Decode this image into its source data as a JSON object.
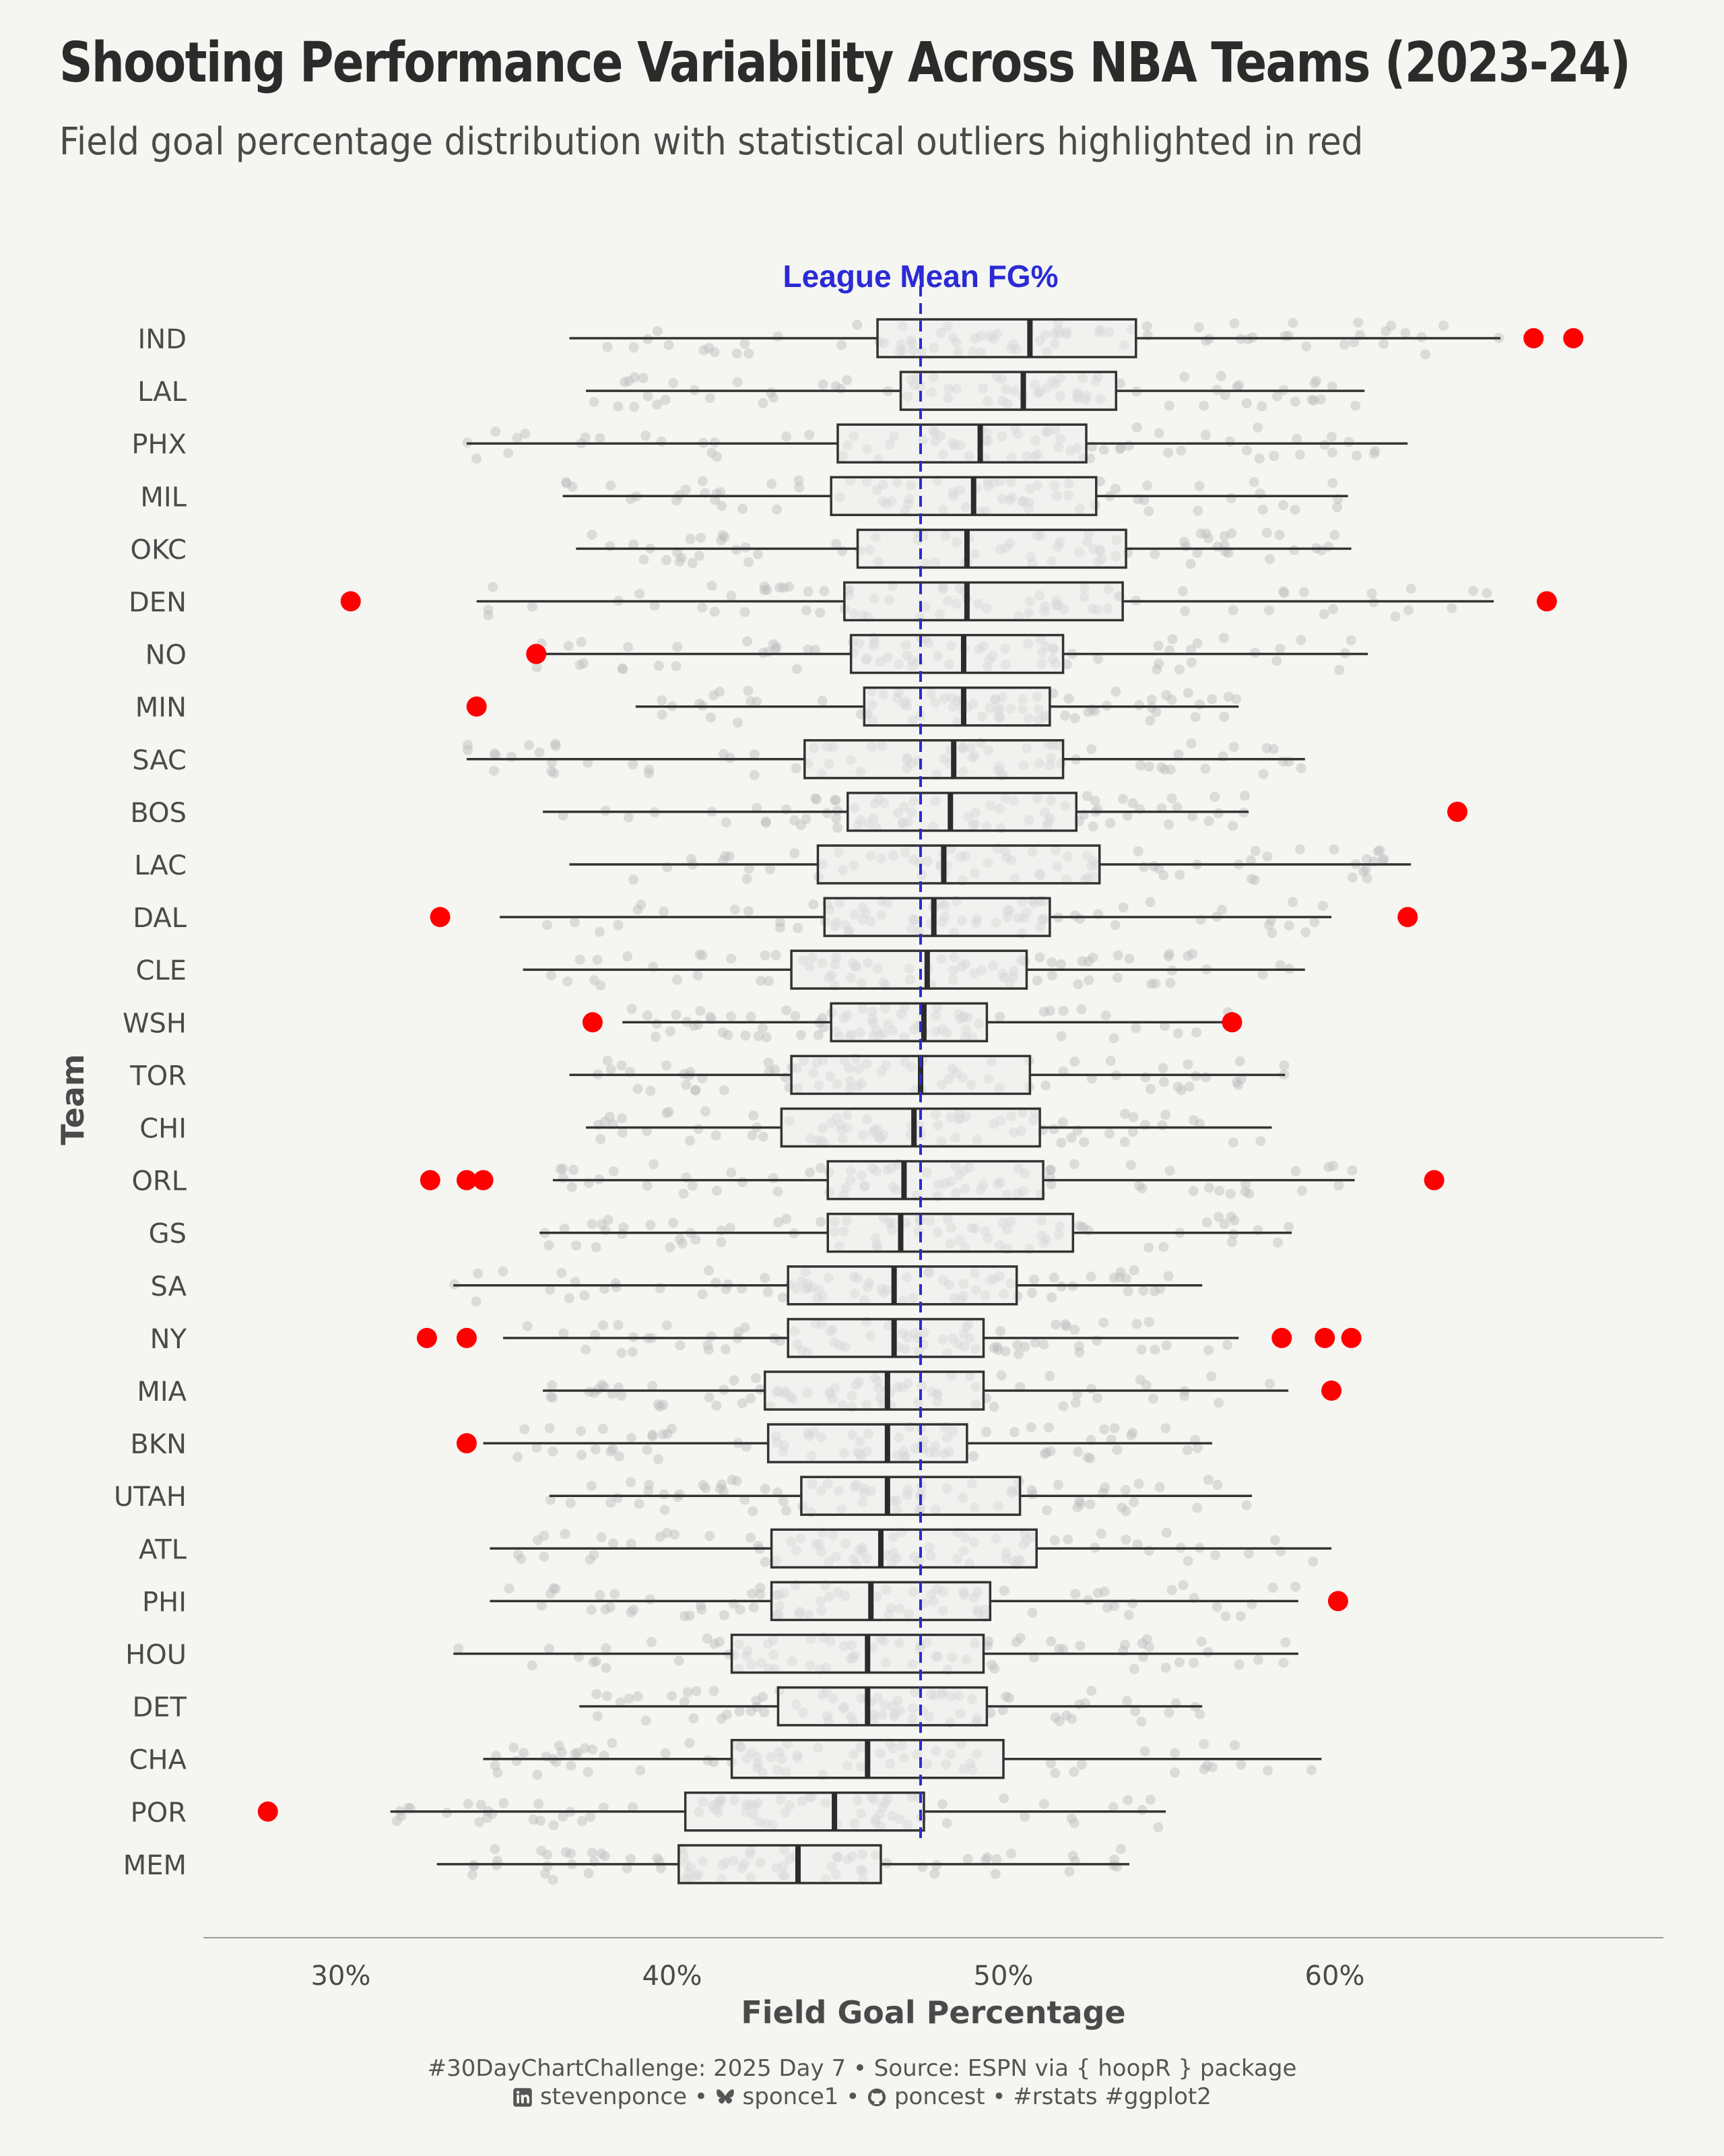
{
  "title": "Shooting Performance Variability Across NBA Teams (2023-24)",
  "subtitle": "Field goal percentage distribution with statistical outliers highlighted in red",
  "caption": {
    "line1": "#30DayChartChallenge: 2025 Day 7 • Source: ESPN via { hoopR } package",
    "linkedin_handle": "stevenponce",
    "bluesky_handle": "sponce1",
    "github_handle": "poncest",
    "tags": "#rstats #ggplot2",
    "separator": "•"
  },
  "icons": {
    "linkedin": "linkedin-icon",
    "bluesky": "bluesky-icon",
    "github": "github-icon"
  },
  "colors": {
    "background": "#f5f5f2",
    "outlier": "#ff0000",
    "mean_line": "#2a2ad6",
    "box_fill": "#ececec",
    "box_stroke": "#333333",
    "jitter": "#bdbdbd"
  },
  "chart_data": {
    "type": "boxplot",
    "orientation": "horizontal",
    "xlabel": "Field Goal Percentage",
    "ylabel": "Team",
    "xlim": [
      0.26,
      0.69
    ],
    "xticks": [
      0.3,
      0.4,
      0.5,
      0.6
    ],
    "xtick_labels": [
      "30%",
      "40%",
      "50%",
      "60%"
    ],
    "grid": false,
    "legend": "none",
    "reference_line": {
      "value": 0.475,
      "label": "League Mean FG%",
      "style": "dashed"
    },
    "teams": [
      {
        "team": "IND",
        "whisker_low": 0.369,
        "q1": 0.462,
        "median": 0.508,
        "q3": 0.54,
        "whisker_high": 0.65,
        "outliers": [
          0.66,
          0.672
        ]
      },
      {
        "team": "LAL",
        "whisker_low": 0.374,
        "q1": 0.469,
        "median": 0.506,
        "q3": 0.534,
        "whisker_high": 0.609,
        "outliers": []
      },
      {
        "team": "PHX",
        "whisker_low": 0.338,
        "q1": 0.45,
        "median": 0.493,
        "q3": 0.525,
        "whisker_high": 0.622,
        "outliers": []
      },
      {
        "team": "MIL",
        "whisker_low": 0.367,
        "q1": 0.448,
        "median": 0.491,
        "q3": 0.528,
        "whisker_high": 0.604,
        "outliers": []
      },
      {
        "team": "OKC",
        "whisker_low": 0.371,
        "q1": 0.456,
        "median": 0.489,
        "q3": 0.537,
        "whisker_high": 0.605,
        "outliers": []
      },
      {
        "team": "DEN",
        "whisker_low": 0.341,
        "q1": 0.452,
        "median": 0.489,
        "q3": 0.536,
        "whisker_high": 0.648,
        "outliers": [
          0.303,
          0.664
        ]
      },
      {
        "team": "NO",
        "whisker_low": 0.359,
        "q1": 0.454,
        "median": 0.488,
        "q3": 0.518,
        "whisker_high": 0.61,
        "outliers": [
          0.359
        ]
      },
      {
        "team": "MIN",
        "whisker_low": 0.389,
        "q1": 0.458,
        "median": 0.488,
        "q3": 0.514,
        "whisker_high": 0.571,
        "outliers": [
          0.341
        ]
      },
      {
        "team": "SAC",
        "whisker_low": 0.338,
        "q1": 0.44,
        "median": 0.485,
        "q3": 0.518,
        "whisker_high": 0.591,
        "outliers": []
      },
      {
        "team": "BOS",
        "whisker_low": 0.361,
        "q1": 0.453,
        "median": 0.484,
        "q3": 0.522,
        "whisker_high": 0.574,
        "outliers": [
          0.637
        ]
      },
      {
        "team": "LAC",
        "whisker_low": 0.369,
        "q1": 0.444,
        "median": 0.482,
        "q3": 0.529,
        "whisker_high": 0.623,
        "outliers": []
      },
      {
        "team": "DAL",
        "whisker_low": 0.348,
        "q1": 0.446,
        "median": 0.479,
        "q3": 0.514,
        "whisker_high": 0.599,
        "outliers": [
          0.33,
          0.622
        ]
      },
      {
        "team": "CLE",
        "whisker_low": 0.355,
        "q1": 0.436,
        "median": 0.477,
        "q3": 0.507,
        "whisker_high": 0.591,
        "outliers": []
      },
      {
        "team": "WSH",
        "whisker_low": 0.385,
        "q1": 0.448,
        "median": 0.476,
        "q3": 0.495,
        "whisker_high": 0.568,
        "outliers": [
          0.376,
          0.569
        ]
      },
      {
        "team": "TOR",
        "whisker_low": 0.369,
        "q1": 0.436,
        "median": 0.475,
        "q3": 0.508,
        "whisker_high": 0.585,
        "outliers": []
      },
      {
        "team": "CHI",
        "whisker_low": 0.374,
        "q1": 0.433,
        "median": 0.473,
        "q3": 0.511,
        "whisker_high": 0.581,
        "outliers": []
      },
      {
        "team": "ORL",
        "whisker_low": 0.364,
        "q1": 0.447,
        "median": 0.47,
        "q3": 0.512,
        "whisker_high": 0.606,
        "outliers": [
          0.327,
          0.338,
          0.343,
          0.63
        ]
      },
      {
        "team": "GS",
        "whisker_low": 0.36,
        "q1": 0.447,
        "median": 0.469,
        "q3": 0.521,
        "whisker_high": 0.587,
        "outliers": []
      },
      {
        "team": "SA",
        "whisker_low": 0.334,
        "q1": 0.435,
        "median": 0.467,
        "q3": 0.504,
        "whisker_high": 0.56,
        "outliers": []
      },
      {
        "team": "NY",
        "whisker_low": 0.349,
        "q1": 0.435,
        "median": 0.467,
        "q3": 0.494,
        "whisker_high": 0.571,
        "outliers": [
          0.326,
          0.338,
          0.584,
          0.597,
          0.605
        ]
      },
      {
        "team": "MIA",
        "whisker_low": 0.361,
        "q1": 0.428,
        "median": 0.465,
        "q3": 0.494,
        "whisker_high": 0.586,
        "outliers": [
          0.599
        ]
      },
      {
        "team": "BKN",
        "whisker_low": 0.343,
        "q1": 0.429,
        "median": 0.465,
        "q3": 0.489,
        "whisker_high": 0.563,
        "outliers": [
          0.338
        ]
      },
      {
        "team": "UTAH",
        "whisker_low": 0.363,
        "q1": 0.439,
        "median": 0.465,
        "q3": 0.505,
        "whisker_high": 0.575,
        "outliers": []
      },
      {
        "team": "ATL",
        "whisker_low": 0.345,
        "q1": 0.43,
        "median": 0.463,
        "q3": 0.51,
        "whisker_high": 0.599,
        "outliers": []
      },
      {
        "team": "PHI",
        "whisker_low": 0.345,
        "q1": 0.43,
        "median": 0.46,
        "q3": 0.496,
        "whisker_high": 0.589,
        "outliers": [
          0.601
        ]
      },
      {
        "team": "HOU",
        "whisker_low": 0.334,
        "q1": 0.418,
        "median": 0.459,
        "q3": 0.494,
        "whisker_high": 0.589,
        "outliers": []
      },
      {
        "team": "DET",
        "whisker_low": 0.372,
        "q1": 0.432,
        "median": 0.459,
        "q3": 0.495,
        "whisker_high": 0.56,
        "outliers": []
      },
      {
        "team": "CHA",
        "whisker_low": 0.343,
        "q1": 0.418,
        "median": 0.459,
        "q3": 0.5,
        "whisker_high": 0.596,
        "outliers": []
      },
      {
        "team": "POR",
        "whisker_low": 0.315,
        "q1": 0.404,
        "median": 0.449,
        "q3": 0.476,
        "whisker_high": 0.549,
        "outliers": [
          0.278
        ]
      },
      {
        "team": "MEM",
        "whisker_low": 0.329,
        "q1": 0.402,
        "median": 0.438,
        "q3": 0.463,
        "whisker_high": 0.538,
        "outliers": []
      }
    ]
  }
}
